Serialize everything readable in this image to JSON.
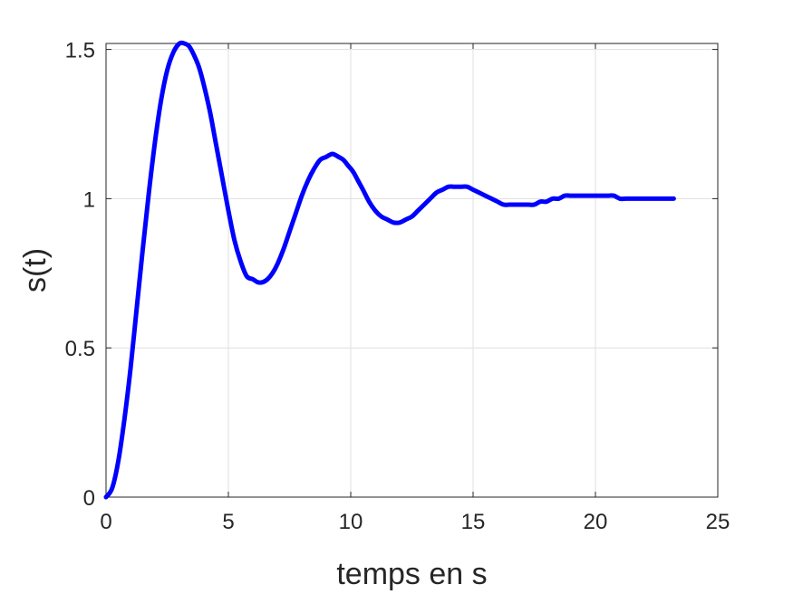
{
  "chart_data": {
    "type": "line",
    "title": "",
    "xlabel": "temps en s",
    "ylabel": "s(t)",
    "xlim": [
      0,
      25
    ],
    "ylim": [
      0,
      1.52
    ],
    "xticks": [
      0,
      5,
      10,
      15,
      20,
      25
    ],
    "yticks": [
      0,
      0.5,
      1,
      1.5
    ],
    "xtick_labels": [
      "0",
      "5",
      "10",
      "15",
      "20",
      "25"
    ],
    "ytick_labels": [
      "0",
      "0.5",
      "1",
      "1.5"
    ],
    "grid": true,
    "legend": "none",
    "series": [
      {
        "color": "#0000ff",
        "x": [
          0,
          0.25,
          0.5,
          0.75,
          1,
          1.25,
          1.5,
          1.75,
          2,
          2.25,
          2.5,
          2.75,
          3,
          3.2,
          3.4,
          3.6,
          3.8,
          4,
          4.25,
          4.5,
          4.75,
          5,
          5.25,
          5.5,
          5.75,
          6,
          6.2,
          6.4,
          6.6,
          6.8,
          7,
          7.25,
          7.5,
          7.75,
          8,
          8.25,
          8.5,
          8.75,
          9,
          9.25,
          9.5,
          9.7,
          9.9,
          10.1,
          10.3,
          10.5,
          10.75,
          11,
          11.25,
          11.5,
          11.75,
          12,
          12.25,
          12.5,
          12.75,
          13,
          13.25,
          13.5,
          13.75,
          14,
          14.25,
          14.5,
          14.75,
          15,
          15.25,
          15.5,
          15.75,
          16,
          16.25,
          16.5,
          16.75,
          17,
          17.25,
          17.5,
          17.75,
          18,
          18.25,
          18.5,
          18.75,
          19,
          19.25,
          19.5,
          19.75,
          20,
          20.25,
          20.5,
          20.75,
          21,
          21.25,
          21.5,
          21.75,
          22,
          22.25,
          22.5,
          22.75,
          23,
          23.2
        ],
        "y": [
          0,
          0.03,
          0.12,
          0.26,
          0.43,
          0.63,
          0.83,
          1.02,
          1.19,
          1.33,
          1.43,
          1.49,
          1.52,
          1.52,
          1.51,
          1.48,
          1.44,
          1.38,
          1.29,
          1.18,
          1.07,
          0.96,
          0.86,
          0.79,
          0.74,
          0.73,
          0.72,
          0.72,
          0.73,
          0.75,
          0.78,
          0.83,
          0.89,
          0.95,
          1.01,
          1.06,
          1.1,
          1.13,
          1.14,
          1.15,
          1.14,
          1.13,
          1.11,
          1.09,
          1.06,
          1.03,
          0.99,
          0.96,
          0.94,
          0.93,
          0.92,
          0.92,
          0.93,
          0.94,
          0.96,
          0.98,
          1.0,
          1.02,
          1.03,
          1.04,
          1.04,
          1.04,
          1.04,
          1.03,
          1.02,
          1.01,
          1.0,
          0.99,
          0.98,
          0.98,
          0.98,
          0.98,
          0.98,
          0.98,
          0.99,
          0.99,
          1.0,
          1.0,
          1.01,
          1.01,
          1.01,
          1.01,
          1.01,
          1.01,
          1.01,
          1.01,
          1.01,
          1.0,
          1.0,
          1.0,
          1.0,
          1.0,
          1.0,
          1.0,
          1.0,
          1.0,
          1.0
        ]
      }
    ]
  }
}
